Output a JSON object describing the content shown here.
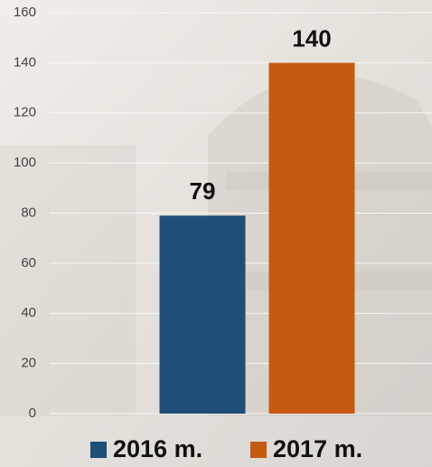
{
  "chart_data": {
    "type": "bar",
    "categories": [
      null
    ],
    "series": [
      {
        "name": "2016 m.",
        "color": "#1f4e79",
        "values": [
          79
        ]
      },
      {
        "name": "2017 m.",
        "color": "#c55a11",
        "values": [
          140
        ]
      }
    ],
    "ylim": [
      0,
      160
    ],
    "yticks": [
      0,
      20,
      40,
      60,
      80,
      100,
      120,
      140,
      160
    ],
    "grid": true
  }
}
